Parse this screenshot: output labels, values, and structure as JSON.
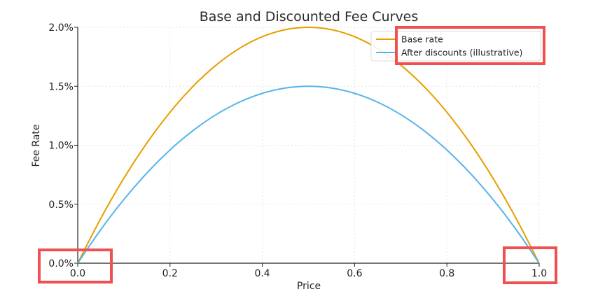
{
  "chart_data": {
    "type": "line",
    "title": "Base and Discounted Fee Curves",
    "xlabel": "Price",
    "ylabel": "Fee Rate",
    "xlim": [
      0.0,
      1.0
    ],
    "ylim": [
      0.0,
      0.02
    ],
    "x_ticks": [
      0.0,
      0.2,
      0.4,
      0.6,
      0.8,
      1.0
    ],
    "x_tick_labels": [
      "0.0",
      "0.2",
      "0.4",
      "0.6",
      "0.8",
      "1.0"
    ],
    "y_ticks": [
      0.0,
      0.005,
      0.01,
      0.015,
      0.02
    ],
    "y_tick_labels": [
      "0.0%",
      "0.5%",
      "1.0%",
      "1.5%",
      "2.0%"
    ],
    "grid": true,
    "legend_position": "top-right",
    "x": [
      0.0,
      0.05,
      0.1,
      0.15,
      0.2,
      0.25,
      0.3,
      0.35,
      0.4,
      0.45,
      0.5,
      0.55,
      0.6,
      0.65,
      0.7,
      0.75,
      0.8,
      0.85,
      0.9,
      0.95,
      1.0
    ],
    "series": [
      {
        "name": "Base rate",
        "color": "#e69f00",
        "values": [
          0.0,
          0.0038,
          0.0072,
          0.0102,
          0.0128,
          0.015,
          0.0168,
          0.0182,
          0.0192,
          0.0198,
          0.02,
          0.0198,
          0.0192,
          0.0182,
          0.0168,
          0.015,
          0.0128,
          0.0102,
          0.0072,
          0.0038,
          0.0
        ]
      },
      {
        "name": "After discounts (illustrative)",
        "color": "#56b4e9",
        "values": [
          0.0,
          0.00285,
          0.0054,
          0.00765,
          0.0096,
          0.01125,
          0.0126,
          0.01365,
          0.0144,
          0.01485,
          0.015,
          0.01485,
          0.0144,
          0.01365,
          0.0126,
          0.01125,
          0.0096,
          0.00765,
          0.0054,
          0.00285,
          0.0
        ]
      }
    ]
  },
  "highlights": {
    "color": "#f05050",
    "targets": [
      "legend",
      "x-tick-0.0",
      "x-tick-1.0"
    ]
  }
}
